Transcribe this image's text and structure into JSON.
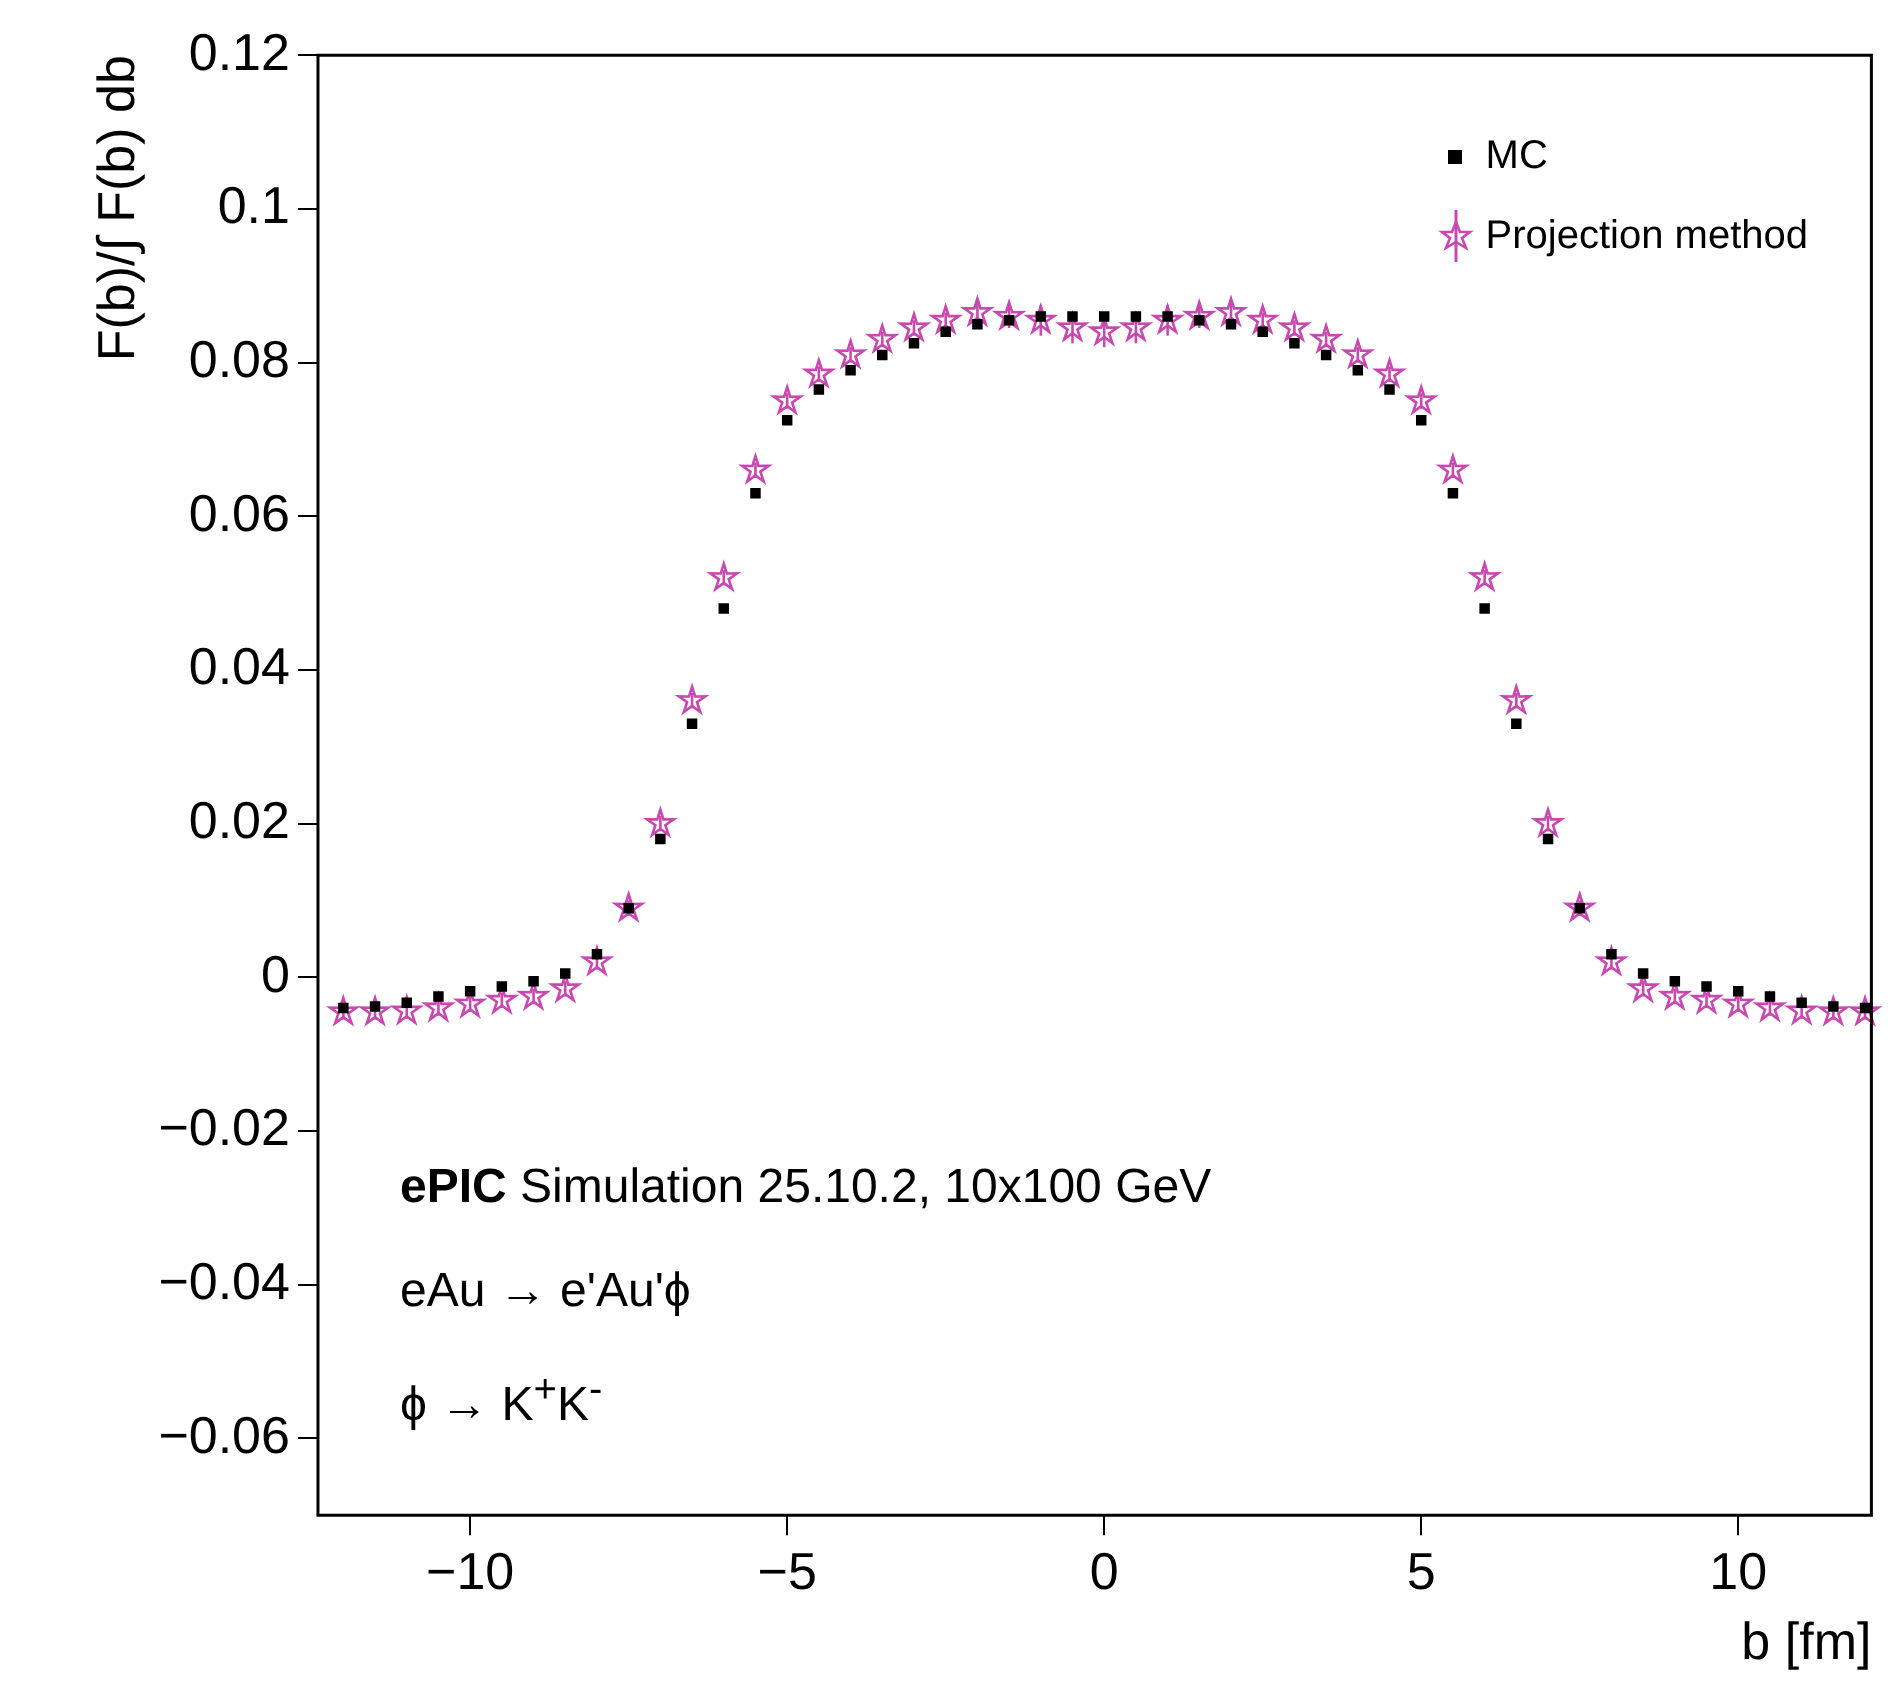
{
  "chart_data": {
    "type": "scatter",
    "xlabel": "b [fm]",
    "ylabel": "F(b)/∫ F(b) db",
    "x": [
      -12,
      -11.5,
      -11,
      -10.5,
      -10,
      -9.5,
      -9,
      -8.5,
      -8,
      -7.5,
      -7,
      -6.5,
      -6,
      -5.5,
      -5,
      -4.5,
      -4,
      -3.5,
      -3,
      -2.5,
      -2,
      -1.5,
      -1,
      -0.5,
      0,
      0.5,
      1,
      1.5,
      2,
      2.5,
      3,
      3.5,
      4,
      4.5,
      5,
      5.5,
      6,
      6.5,
      7,
      7.5,
      8,
      8.5,
      9,
      9.5,
      10,
      10.5,
      11,
      11.5,
      12
    ],
    "series": [
      {
        "name": "MC",
        "color": "#000000",
        "marker": "square",
        "values": [
          -0.004,
          -0.0038,
          -0.0033,
          -0.0025,
          -0.0018,
          -0.0012,
          -0.0005,
          0.0005,
          0.003,
          0.009,
          0.018,
          0.033,
          0.048,
          0.063,
          0.0725,
          0.0765,
          0.079,
          0.081,
          0.0825,
          0.084,
          0.085,
          0.0855,
          0.086,
          0.086,
          0.086,
          0.086,
          0.086,
          0.0855,
          0.085,
          0.084,
          0.0825,
          0.081,
          0.079,
          0.0765,
          0.0725,
          0.063,
          0.048,
          0.033,
          0.018,
          0.009,
          0.003,
          0.0005,
          -0.0005,
          -0.0012,
          -0.0018,
          -0.0025,
          -0.0033,
          -0.0038,
          -0.004
        ]
      },
      {
        "name": "Projection method",
        "color": "#c848b0",
        "marker": "star",
        "values": [
          -0.0045,
          -0.0045,
          -0.0044,
          -0.004,
          -0.0035,
          -0.003,
          -0.0025,
          -0.0015,
          0.002,
          0.009,
          0.02,
          0.036,
          0.052,
          0.066,
          0.075,
          0.0785,
          0.081,
          0.083,
          0.0845,
          0.0855,
          0.0865,
          0.086,
          0.0855,
          0.0845,
          0.084,
          0.0845,
          0.0855,
          0.086,
          0.0865,
          0.0855,
          0.0845,
          0.083,
          0.081,
          0.0785,
          0.075,
          0.066,
          0.052,
          0.036,
          0.02,
          0.009,
          0.002,
          -0.0015,
          -0.0025,
          -0.003,
          -0.0035,
          -0.004,
          -0.0044,
          -0.0045,
          -0.0045
        ],
        "errors": [
          0.001,
          0.001,
          0.001,
          0.001,
          0.001,
          0.001,
          0.001,
          0.001,
          0.001,
          0.001,
          0.001,
          0.001,
          0.001,
          0.001,
          0.001,
          0.001,
          0.001,
          0.001,
          0.001,
          0.001,
          0.0015,
          0.0015,
          0.002,
          0.002,
          0.002,
          0.002,
          0.002,
          0.0015,
          0.0015,
          0.001,
          0.001,
          0.001,
          0.001,
          0.001,
          0.001,
          0.001,
          0.001,
          0.001,
          0.001,
          0.001,
          0.001,
          0.001,
          0.001,
          0.001,
          0.001,
          0.001,
          0.001,
          0.001,
          0.001
        ]
      }
    ],
    "xlim": [
      -12.4,
      12.1
    ],
    "ylim": [
      -0.07,
      0.12
    ],
    "xticks": [
      {
        "value": -10,
        "label": "−10"
      },
      {
        "value": -5,
        "label": "−5"
      },
      0,
      5,
      10
    ],
    "yticks": [
      {
        "value": -0.06,
        "label": "−0.06"
      },
      {
        "value": -0.04,
        "label": "−0.04"
      },
      {
        "value": -0.02,
        "label": "−0.02"
      },
      0,
      0.02,
      0.04,
      0.06,
      0.08,
      0.1,
      0.12
    ],
    "grid": false,
    "legend": "top right",
    "annotations": [
      "ePIC Simulation 25.10.2, 10x100 GeV",
      "eAu → e'Au'ϕ",
      "ϕ → K$^{+}$K$^{-}$"
    ]
  }
}
